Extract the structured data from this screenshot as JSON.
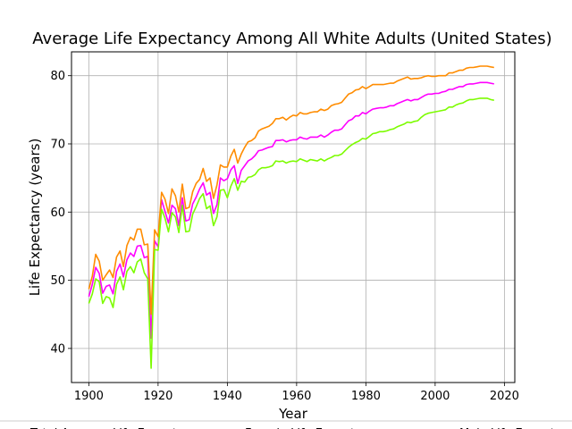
{
  "chart_data": {
    "type": "line",
    "title": "Average Life Expectancy Among All White Adults (United States)",
    "xlabel": "Year",
    "ylabel": "Life Expectancy (years)",
    "xlim": [
      1895,
      2023
    ],
    "ylim": [
      35,
      83.5
    ],
    "xticks": [
      1900,
      1920,
      1940,
      1960,
      1980,
      2000,
      2020
    ],
    "yticks": [
      40,
      50,
      60,
      70,
      80
    ],
    "grid": true,
    "legend_position": "bottom",
    "x": [
      1900,
      1901,
      1902,
      1903,
      1904,
      1905,
      1906,
      1907,
      1908,
      1909,
      1910,
      1911,
      1912,
      1913,
      1914,
      1915,
      1916,
      1917,
      1918,
      1919,
      1920,
      1921,
      1922,
      1923,
      1924,
      1925,
      1926,
      1927,
      1928,
      1929,
      1930,
      1931,
      1932,
      1933,
      1934,
      1935,
      1936,
      1937,
      1938,
      1939,
      1940,
      1941,
      1942,
      1943,
      1944,
      1945,
      1946,
      1947,
      1948,
      1949,
      1950,
      1951,
      1952,
      1953,
      1954,
      1955,
      1956,
      1957,
      1958,
      1959,
      1960,
      1961,
      1962,
      1963,
      1964,
      1965,
      1966,
      1967,
      1968,
      1969,
      1970,
      1971,
      1972,
      1973,
      1974,
      1975,
      1976,
      1977,
      1978,
      1979,
      1980,
      1981,
      1982,
      1983,
      1984,
      1985,
      1986,
      1987,
      1988,
      1989,
      1990,
      1991,
      1992,
      1993,
      1994,
      1995,
      1996,
      1997,
      1998,
      1999,
      2000,
      2001,
      2002,
      2003,
      2004,
      2005,
      2006,
      2007,
      2008,
      2009,
      2010,
      2011,
      2012,
      2013,
      2014,
      2015,
      2016,
      2017
    ],
    "series": [
      {
        "name": "Total Average Life Expectancy",
        "color": "#ff00ff",
        "values": [
          47.6,
          49.4,
          51.9,
          51.0,
          48.1,
          49.1,
          49.3,
          48.0,
          51.3,
          52.4,
          50.5,
          53.0,
          54.0,
          53.5,
          55.0,
          55.1,
          53.3,
          53.5,
          41.5,
          55.8,
          54.9,
          61.8,
          60.1,
          58.4,
          61.0,
          60.5,
          58.0,
          62.1,
          58.7,
          58.9,
          61.2,
          62.2,
          63.4,
          64.3,
          62.5,
          62.9,
          59.8,
          61.1,
          65.0,
          64.6,
          64.9,
          66.2,
          66.8,
          64.2,
          66.1,
          66.8,
          67.5,
          67.8,
          68.3,
          69.0,
          69.1,
          69.3,
          69.5,
          69.6,
          70.5,
          70.5,
          70.6,
          70.3,
          70.5,
          70.6,
          70.6,
          71.0,
          70.8,
          70.7,
          71.0,
          71.0,
          71.0,
          71.3,
          71.0,
          71.3,
          71.7,
          72.0,
          72.0,
          72.2,
          72.8,
          73.4,
          73.6,
          74.1,
          74.1,
          74.6,
          74.4,
          74.8,
          75.1,
          75.2,
          75.3,
          75.3,
          75.4,
          75.6,
          75.6,
          75.9,
          76.1,
          76.3,
          76.5,
          76.3,
          76.5,
          76.5,
          76.8,
          77.1,
          77.3,
          77.3,
          77.4,
          77.4,
          77.6,
          77.7,
          78.0,
          78.0,
          78.2,
          78.4,
          78.4,
          78.7,
          78.8,
          78.8,
          78.9,
          79.0,
          79.0,
          79.0,
          78.9,
          78.8
        ]
      },
      {
        "name": "Female Life Expectancy",
        "color": "#ff8c00",
        "values": [
          48.7,
          50.6,
          53.8,
          52.8,
          50.0,
          50.8,
          51.5,
          50.4,
          53.4,
          54.3,
          52.0,
          55.1,
          56.3,
          55.9,
          57.5,
          57.5,
          55.2,
          55.3,
          45.0,
          57.4,
          56.4,
          62.9,
          61.9,
          59.8,
          63.4,
          62.4,
          60.0,
          64.1,
          60.5,
          60.7,
          63.0,
          64.2,
          64.8,
          66.4,
          64.5,
          65.0,
          62.0,
          64.0,
          66.9,
          66.6,
          66.6,
          68.2,
          69.2,
          67.2,
          68.5,
          69.5,
          70.3,
          70.5,
          70.9,
          71.9,
          72.2,
          72.4,
          72.6,
          73.0,
          73.7,
          73.7,
          73.9,
          73.5,
          73.9,
          74.2,
          74.1,
          74.6,
          74.4,
          74.4,
          74.6,
          74.7,
          74.7,
          75.1,
          74.9,
          75.1,
          75.6,
          75.8,
          75.9,
          76.1,
          76.7,
          77.3,
          77.5,
          77.9,
          78.0,
          78.4,
          78.1,
          78.4,
          78.7,
          78.7,
          78.7,
          78.7,
          78.8,
          78.9,
          78.9,
          79.2,
          79.4,
          79.6,
          79.8,
          79.5,
          79.6,
          79.6,
          79.7,
          79.9,
          80.0,
          79.9,
          79.9,
          80.0,
          80.0,
          80.0,
          80.4,
          80.4,
          80.6,
          80.8,
          80.8,
          81.1,
          81.2,
          81.2,
          81.3,
          81.4,
          81.4,
          81.4,
          81.3,
          81.2
        ]
      },
      {
        "name": "Male Life Expectancy",
        "color": "#7cfc00",
        "values": [
          46.6,
          48.0,
          50.2,
          49.8,
          46.6,
          47.6,
          47.4,
          46.0,
          49.4,
          50.5,
          48.6,
          51.3,
          52.0,
          51.1,
          52.7,
          53.1,
          51.1,
          50.2,
          37.1,
          54.5,
          54.4,
          60.4,
          59.1,
          57.1,
          59.9,
          59.3,
          57.0,
          61.0,
          57.1,
          57.2,
          59.7,
          60.8,
          62.0,
          62.7,
          60.5,
          60.9,
          58.0,
          59.3,
          63.2,
          63.3,
          62.1,
          63.8,
          64.9,
          63.2,
          64.5,
          64.4,
          65.1,
          65.2,
          65.5,
          66.2,
          66.5,
          66.5,
          66.6,
          66.8,
          67.5,
          67.4,
          67.5,
          67.2,
          67.4,
          67.5,
          67.4,
          67.8,
          67.6,
          67.4,
          67.7,
          67.6,
          67.5,
          67.8,
          67.5,
          67.8,
          68.0,
          68.3,
          68.3,
          68.5,
          69.0,
          69.5,
          69.9,
          70.2,
          70.4,
          70.8,
          70.7,
          71.1,
          71.5,
          71.6,
          71.8,
          71.8,
          71.9,
          72.1,
          72.2,
          72.5,
          72.7,
          72.9,
          73.2,
          73.1,
          73.3,
          73.4,
          73.9,
          74.3,
          74.5,
          74.6,
          74.7,
          74.8,
          74.9,
          75.0,
          75.4,
          75.4,
          75.7,
          75.9,
          76.0,
          76.3,
          76.5,
          76.5,
          76.6,
          76.7,
          76.7,
          76.7,
          76.5,
          76.4
        ]
      }
    ]
  }
}
